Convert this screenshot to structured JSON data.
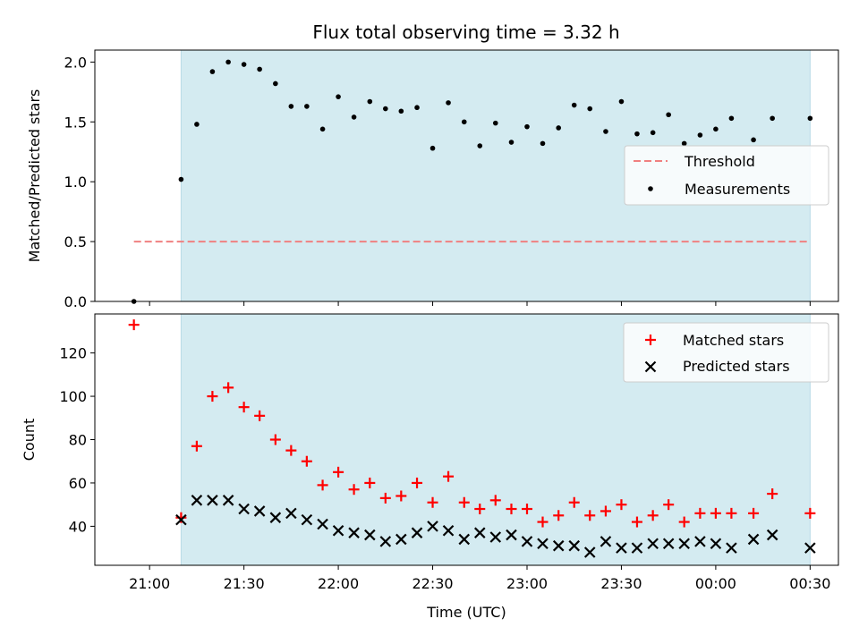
{
  "chart_data": {
    "type": "scatter",
    "title": "Flux total observing time = 3.32 h",
    "xlabel": "Time (UTC)",
    "x_ticks": [
      "21:00",
      "21:30",
      "22:00",
      "22:30",
      "23:00",
      "23:30",
      "00:00",
      "00:30"
    ],
    "x_tick_hours": [
      21.0,
      21.5,
      22.0,
      22.5,
      23.0,
      23.5,
      24.0,
      24.5
    ],
    "xlim_hours": [
      20.71,
      24.65
    ],
    "observing_window_hours": [
      21.167,
      24.5
    ],
    "window_color": "#d4ebf1",
    "panels": [
      {
        "ylabel": "Matched/Predicted stars",
        "ylim": [
          0,
          2.1
        ],
        "y_ticks": [
          0.0,
          0.5,
          1.0,
          1.5,
          2.0
        ],
        "y_tick_labels": [
          "0.0",
          "0.5",
          "1.0",
          "1.5",
          "2.0"
        ],
        "threshold": {
          "name": "Threshold",
          "value": 0.5,
          "x_range_hours": [
            20.917,
            24.5
          ],
          "color": "#f08080"
        },
        "series": [
          {
            "name": "Measurements",
            "color": "#000000",
            "x": [
              20.917,
              21.167,
              21.25,
              21.333,
              21.417,
              21.5,
              21.583,
              21.667,
              21.75,
              21.833,
              21.917,
              22.0,
              22.083,
              22.167,
              22.25,
              22.333,
              22.417,
              22.5,
              22.583,
              22.667,
              22.75,
              22.833,
              22.917,
              23.0,
              23.083,
              23.167,
              23.25,
              23.333,
              23.417,
              23.5,
              23.583,
              23.667,
              23.75,
              23.833,
              23.917,
              24.0,
              24.083,
              24.2,
              24.3,
              24.5
            ],
            "y": [
              0.0,
              1.02,
              1.48,
              1.92,
              2.0,
              1.98,
              1.94,
              1.82,
              1.63,
              1.63,
              1.44,
              1.71,
              1.54,
              1.67,
              1.61,
              1.59,
              1.62,
              1.28,
              1.66,
              1.5,
              1.3,
              1.49,
              1.33,
              1.46,
              1.32,
              1.45,
              1.64,
              1.61,
              1.42,
              1.67,
              1.4,
              1.41,
              1.56,
              1.32,
              1.39,
              1.44,
              1.53,
              1.35,
              1.53,
              1.53
            ]
          }
        ],
        "legend_position": "center-right"
      },
      {
        "ylabel": "Count",
        "ylim": [
          22,
          138
        ],
        "y_ticks": [
          40,
          60,
          80,
          100,
          120
        ],
        "y_tick_labels": [
          "40",
          "60",
          "80",
          "100",
          "120"
        ],
        "series": [
          {
            "name": "Matched stars",
            "color": "#ff0000",
            "marker": "plus",
            "x": [
              20.917,
              21.167,
              21.25,
              21.333,
              21.417,
              21.5,
              21.583,
              21.667,
              21.75,
              21.833,
              21.917,
              22.0,
              22.083,
              22.167,
              22.25,
              22.333,
              22.417,
              22.5,
              22.583,
              22.667,
              22.75,
              22.833,
              22.917,
              23.0,
              23.083,
              23.167,
              23.25,
              23.333,
              23.417,
              23.5,
              23.583,
              23.667,
              23.75,
              23.833,
              23.917,
              24.0,
              24.083,
              24.2,
              24.3,
              24.5
            ],
            "y": [
              133,
              44,
              77,
              100,
              104,
              95,
              91,
              80,
              75,
              70,
              59,
              65,
              57,
              60,
              53,
              54,
              60,
              51,
              63,
              51,
              48,
              52,
              48,
              48,
              42,
              45,
              51,
              45,
              47,
              50,
              42,
              45,
              50,
              42,
              46,
              46,
              46,
              46,
              55,
              46
            ]
          },
          {
            "name": "Predicted stars",
            "color": "#000000",
            "marker": "x",
            "x": [
              21.167,
              21.25,
              21.333,
              21.417,
              21.5,
              21.583,
              21.667,
              21.75,
              21.833,
              21.917,
              22.0,
              22.083,
              22.167,
              22.25,
              22.333,
              22.417,
              22.5,
              22.583,
              22.667,
              22.75,
              22.833,
              22.917,
              23.0,
              23.083,
              23.167,
              23.25,
              23.333,
              23.417,
              23.5,
              23.583,
              23.667,
              23.75,
              23.833,
              23.917,
              24.0,
              24.083,
              24.2,
              24.3,
              24.5
            ],
            "y": [
              43,
              52,
              52,
              52,
              48,
              47,
              44,
              46,
              43,
              41,
              38,
              37,
              36,
              33,
              34,
              37,
              40,
              38,
              34,
              37,
              35,
              36,
              33,
              32,
              31,
              31,
              28,
              33,
              30,
              30,
              32,
              32,
              32,
              33,
              32,
              30,
              34,
              36,
              30
            ]
          }
        ],
        "legend_position": "top-right"
      }
    ]
  }
}
